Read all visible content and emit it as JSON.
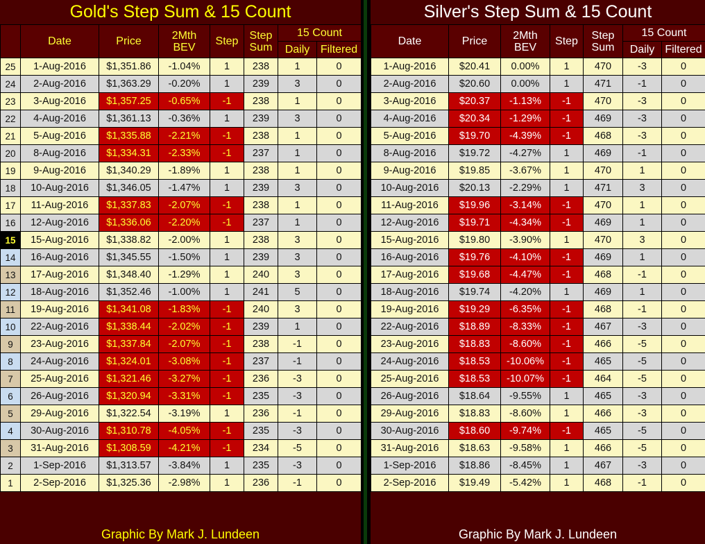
{
  "gold": {
    "title": "Gold's Step Sum & 15 Count",
    "footer": "Graphic By Mark J. Lundeen",
    "headers": {
      "date": "Date",
      "price": "Price",
      "bev_line1": "2Mth",
      "bev_line2": "BEV",
      "step": "Step",
      "stepsum_line1": "Step",
      "stepsum_line2": "Sum",
      "count_group": "15 Count",
      "daily": "Daily",
      "filtered": "Filtered"
    },
    "rows": [
      {
        "n": "25",
        "date": "1-Aug-2016",
        "price": "$1,351.86",
        "bev": "-1.04%",
        "step": "1",
        "sum": "238",
        "daily": "1",
        "filtered": "0"
      },
      {
        "n": "24",
        "date": "2-Aug-2016",
        "price": "$1,363.29",
        "bev": "-0.20%",
        "step": "1",
        "sum": "239",
        "daily": "3",
        "filtered": "0"
      },
      {
        "n": "23",
        "date": "3-Aug-2016",
        "price": "$1,357.25",
        "bev": "-0.65%",
        "step": "-1",
        "sum": "238",
        "daily": "1",
        "filtered": "0"
      },
      {
        "n": "22",
        "date": "4-Aug-2016",
        "price": "$1,361.13",
        "bev": "-0.36%",
        "step": "1",
        "sum": "239",
        "daily": "3",
        "filtered": "0"
      },
      {
        "n": "21",
        "date": "5-Aug-2016",
        "price": "$1,335.88",
        "bev": "-2.21%",
        "step": "-1",
        "sum": "238",
        "daily": "1",
        "filtered": "0"
      },
      {
        "n": "20",
        "date": "8-Aug-2016",
        "price": "$1,334.31",
        "bev": "-2.33%",
        "step": "-1",
        "sum": "237",
        "daily": "1",
        "filtered": "0"
      },
      {
        "n": "19",
        "date": "9-Aug-2016",
        "price": "$1,340.29",
        "bev": "-1.89%",
        "step": "1",
        "sum": "238",
        "daily": "1",
        "filtered": "0"
      },
      {
        "n": "18",
        "date": "10-Aug-2016",
        "price": "$1,346.05",
        "bev": "-1.47%",
        "step": "1",
        "sum": "239",
        "daily": "3",
        "filtered": "0"
      },
      {
        "n": "17",
        "date": "11-Aug-2016",
        "price": "$1,337.83",
        "bev": "-2.07%",
        "step": "-1",
        "sum": "238",
        "daily": "1",
        "filtered": "0"
      },
      {
        "n": "16",
        "date": "12-Aug-2016",
        "price": "$1,336.06",
        "bev": "-2.20%",
        "step": "-1",
        "sum": "237",
        "daily": "1",
        "filtered": "0"
      },
      {
        "n": "15",
        "date": "15-Aug-2016",
        "price": "$1,338.82",
        "bev": "-2.00%",
        "step": "1",
        "sum": "238",
        "daily": "3",
        "filtered": "0"
      },
      {
        "n": "14",
        "date": "16-Aug-2016",
        "price": "$1,345.55",
        "bev": "-1.50%",
        "step": "1",
        "sum": "239",
        "daily": "3",
        "filtered": "0"
      },
      {
        "n": "13",
        "date": "17-Aug-2016",
        "price": "$1,348.40",
        "bev": "-1.29%",
        "step": "1",
        "sum": "240",
        "daily": "3",
        "filtered": "0"
      },
      {
        "n": "12",
        "date": "18-Aug-2016",
        "price": "$1,352.46",
        "bev": "-1.00%",
        "step": "1",
        "sum": "241",
        "daily": "5",
        "filtered": "0"
      },
      {
        "n": "11",
        "date": "19-Aug-2016",
        "price": "$1,341.08",
        "bev": "-1.83%",
        "step": "-1",
        "sum": "240",
        "daily": "3",
        "filtered": "0"
      },
      {
        "n": "10",
        "date": "22-Aug-2016",
        "price": "$1,338.44",
        "bev": "-2.02%",
        "step": "-1",
        "sum": "239",
        "daily": "1",
        "filtered": "0"
      },
      {
        "n": "9",
        "date": "23-Aug-2016",
        "price": "$1,337.84",
        "bev": "-2.07%",
        "step": "-1",
        "sum": "238",
        "daily": "-1",
        "filtered": "0"
      },
      {
        "n": "8",
        "date": "24-Aug-2016",
        "price": "$1,324.01",
        "bev": "-3.08%",
        "step": "-1",
        "sum": "237",
        "daily": "-1",
        "filtered": "0"
      },
      {
        "n": "7",
        "date": "25-Aug-2016",
        "price": "$1,321.46",
        "bev": "-3.27%",
        "step": "-1",
        "sum": "236",
        "daily": "-3",
        "filtered": "0"
      },
      {
        "n": "6",
        "date": "26-Aug-2016",
        "price": "$1,320.94",
        "bev": "-3.31%",
        "step": "-1",
        "sum": "235",
        "daily": "-3",
        "filtered": "0"
      },
      {
        "n": "5",
        "date": "29-Aug-2016",
        "price": "$1,322.54",
        "bev": "-3.19%",
        "step": "1",
        "sum": "236",
        "daily": "-1",
        "filtered": "0"
      },
      {
        "n": "4",
        "date": "30-Aug-2016",
        "price": "$1,310.78",
        "bev": "-4.05%",
        "step": "-1",
        "sum": "235",
        "daily": "-3",
        "filtered": "0"
      },
      {
        "n": "3",
        "date": "31-Aug-2016",
        "price": "$1,308.59",
        "bev": "-4.21%",
        "step": "-1",
        "sum": "234",
        "daily": "-5",
        "filtered": "0"
      },
      {
        "n": "2",
        "date": "1-Sep-2016",
        "price": "$1,313.57",
        "bev": "-3.84%",
        "step": "1",
        "sum": "235",
        "daily": "-3",
        "filtered": "0"
      },
      {
        "n": "1",
        "date": "2-Sep-2016",
        "price": "$1,325.36",
        "bev": "-2.98%",
        "step": "1",
        "sum": "236",
        "daily": "-1",
        "filtered": "0"
      }
    ]
  },
  "silver": {
    "title": "Silver's Step Sum & 15 Count",
    "footer": "Graphic By Mark J. Lundeen",
    "headers": {
      "date": "Date",
      "price": "Price",
      "bev_line1": "2Mth",
      "bev_line2": "BEV",
      "step": "Step",
      "stepsum_line1": "Step",
      "stepsum_line2": "Sum",
      "count_group": "15 Count",
      "daily": "Daily",
      "filtered": "Filtered"
    },
    "rows": [
      {
        "date": "1-Aug-2016",
        "price": "$20.41",
        "bev": "0.00%",
        "step": "1",
        "sum": "470",
        "daily": "-3",
        "filtered": "0"
      },
      {
        "date": "2-Aug-2016",
        "price": "$20.60",
        "bev": "0.00%",
        "step": "1",
        "sum": "471",
        "daily": "-1",
        "filtered": "0"
      },
      {
        "date": "3-Aug-2016",
        "price": "$20.37",
        "bev": "-1.13%",
        "step": "-1",
        "sum": "470",
        "daily": "-3",
        "filtered": "0"
      },
      {
        "date": "4-Aug-2016",
        "price": "$20.34",
        "bev": "-1.29%",
        "step": "-1",
        "sum": "469",
        "daily": "-3",
        "filtered": "0"
      },
      {
        "date": "5-Aug-2016",
        "price": "$19.70",
        "bev": "-4.39%",
        "step": "-1",
        "sum": "468",
        "daily": "-3",
        "filtered": "0"
      },
      {
        "date": "8-Aug-2016",
        "price": "$19.72",
        "bev": "-4.27%",
        "step": "1",
        "sum": "469",
        "daily": "-1",
        "filtered": "0"
      },
      {
        "date": "9-Aug-2016",
        "price": "$19.85",
        "bev": "-3.67%",
        "step": "1",
        "sum": "470",
        "daily": "1",
        "filtered": "0"
      },
      {
        "date": "10-Aug-2016",
        "price": "$20.13",
        "bev": "-2.29%",
        "step": "1",
        "sum": "471",
        "daily": "3",
        "filtered": "0"
      },
      {
        "date": "11-Aug-2016",
        "price": "$19.96",
        "bev": "-3.14%",
        "step": "-1",
        "sum": "470",
        "daily": "1",
        "filtered": "0"
      },
      {
        "date": "12-Aug-2016",
        "price": "$19.71",
        "bev": "-4.34%",
        "step": "-1",
        "sum": "469",
        "daily": "1",
        "filtered": "0"
      },
      {
        "date": "15-Aug-2016",
        "price": "$19.80",
        "bev": "-3.90%",
        "step": "1",
        "sum": "470",
        "daily": "3",
        "filtered": "0"
      },
      {
        "date": "16-Aug-2016",
        "price": "$19.76",
        "bev": "-4.10%",
        "step": "-1",
        "sum": "469",
        "daily": "1",
        "filtered": "0"
      },
      {
        "date": "17-Aug-2016",
        "price": "$19.68",
        "bev": "-4.47%",
        "step": "-1",
        "sum": "468",
        "daily": "-1",
        "filtered": "0"
      },
      {
        "date": "18-Aug-2016",
        "price": "$19.74",
        "bev": "-4.20%",
        "step": "1",
        "sum": "469",
        "daily": "1",
        "filtered": "0"
      },
      {
        "date": "19-Aug-2016",
        "price": "$19.29",
        "bev": "-6.35%",
        "step": "-1",
        "sum": "468",
        "daily": "-1",
        "filtered": "0"
      },
      {
        "date": "22-Aug-2016",
        "price": "$18.89",
        "bev": "-8.33%",
        "step": "-1",
        "sum": "467",
        "daily": "-3",
        "filtered": "0"
      },
      {
        "date": "23-Aug-2016",
        "price": "$18.83",
        "bev": "-8.60%",
        "step": "-1",
        "sum": "466",
        "daily": "-5",
        "filtered": "0"
      },
      {
        "date": "24-Aug-2016",
        "price": "$18.53",
        "bev": "-10.06%",
        "step": "-1",
        "sum": "465",
        "daily": "-5",
        "filtered": "0"
      },
      {
        "date": "25-Aug-2016",
        "price": "$18.53",
        "bev": "-10.07%",
        "step": "-1",
        "sum": "464",
        "daily": "-5",
        "filtered": "0"
      },
      {
        "date": "26-Aug-2016",
        "price": "$18.64",
        "bev": "-9.55%",
        "step": "1",
        "sum": "465",
        "daily": "-3",
        "filtered": "0"
      },
      {
        "date": "29-Aug-2016",
        "price": "$18.83",
        "bev": "-8.60%",
        "step": "1",
        "sum": "466",
        "daily": "-3",
        "filtered": "0"
      },
      {
        "date": "30-Aug-2016",
        "price": "$18.60",
        "bev": "-9.74%",
        "step": "-1",
        "sum": "465",
        "daily": "-5",
        "filtered": "0"
      },
      {
        "date": "31-Aug-2016",
        "price": "$18.63",
        "bev": "-9.58%",
        "step": "1",
        "sum": "466",
        "daily": "-5",
        "filtered": "0"
      },
      {
        "date": "1-Sep-2016",
        "price": "$18.86",
        "bev": "-8.45%",
        "step": "1",
        "sum": "467",
        "daily": "-3",
        "filtered": "0"
      },
      {
        "date": "2-Sep-2016",
        "price": "$19.49",
        "bev": "-5.42%",
        "step": "1",
        "sum": "468",
        "daily": "-1",
        "filtered": "0"
      }
    ]
  },
  "colors": {
    "background": "#4a0000",
    "row_light": "#fbf7c2",
    "row_grey": "#d7d7d7",
    "down_day": "#c00000",
    "gold_text": "#ffff00",
    "silver_text": "#ffffff"
  }
}
